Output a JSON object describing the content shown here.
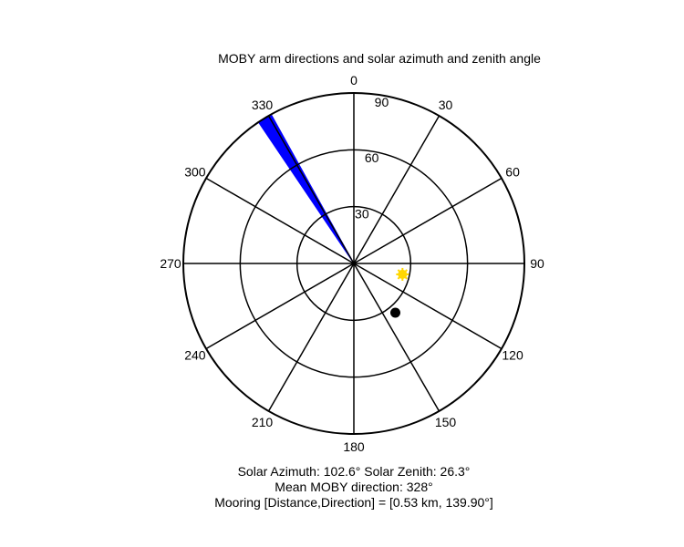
{
  "chart_data": {
    "type": "polar",
    "title": "MOBY arm directions and solar azimuth and zenith angle",
    "angle_convention": "compass, 0 at top, clockwise",
    "angle_labels": [
      {
        "deg": 0,
        "text": "0"
      },
      {
        "deg": 30,
        "text": "30"
      },
      {
        "deg": 60,
        "text": "60"
      },
      {
        "deg": 90,
        "text": "90"
      },
      {
        "deg": 120,
        "text": "120"
      },
      {
        "deg": 150,
        "text": "150"
      },
      {
        "deg": 180,
        "text": "180"
      },
      {
        "deg": 210,
        "text": "210"
      },
      {
        "deg": 240,
        "text": "240"
      },
      {
        "deg": 270,
        "text": "270"
      },
      {
        "deg": 300,
        "text": "300"
      },
      {
        "deg": 330,
        "text": "330"
      }
    ],
    "radial_max": 90,
    "radial_rings": [
      30,
      60,
      90
    ],
    "radial_labels": [
      {
        "value": 30,
        "text": "30"
      },
      {
        "value": 60,
        "text": "60"
      },
      {
        "value": 90,
        "text": "90"
      }
    ],
    "moby_arm_wedge": {
      "direction_start": 326,
      "direction_end": 331,
      "radius": 90,
      "color": "#0000ff"
    },
    "sun_marker": {
      "azimuth": 102.6,
      "zenith": 26.3,
      "color": "#ffd700",
      "symbol": "star"
    },
    "mooring_marker": {
      "direction": 139.9,
      "radius": 34,
      "color": "#000000",
      "symbol": "dot"
    },
    "info_lines": [
      "Solar Azimuth: 102.6°   Solar Zenith: 26.3°",
      "Mean MOBY direction: 328°",
      "Mooring [Distance,Direction] = [0.53 km, 139.90°]"
    ],
    "grid": true
  }
}
